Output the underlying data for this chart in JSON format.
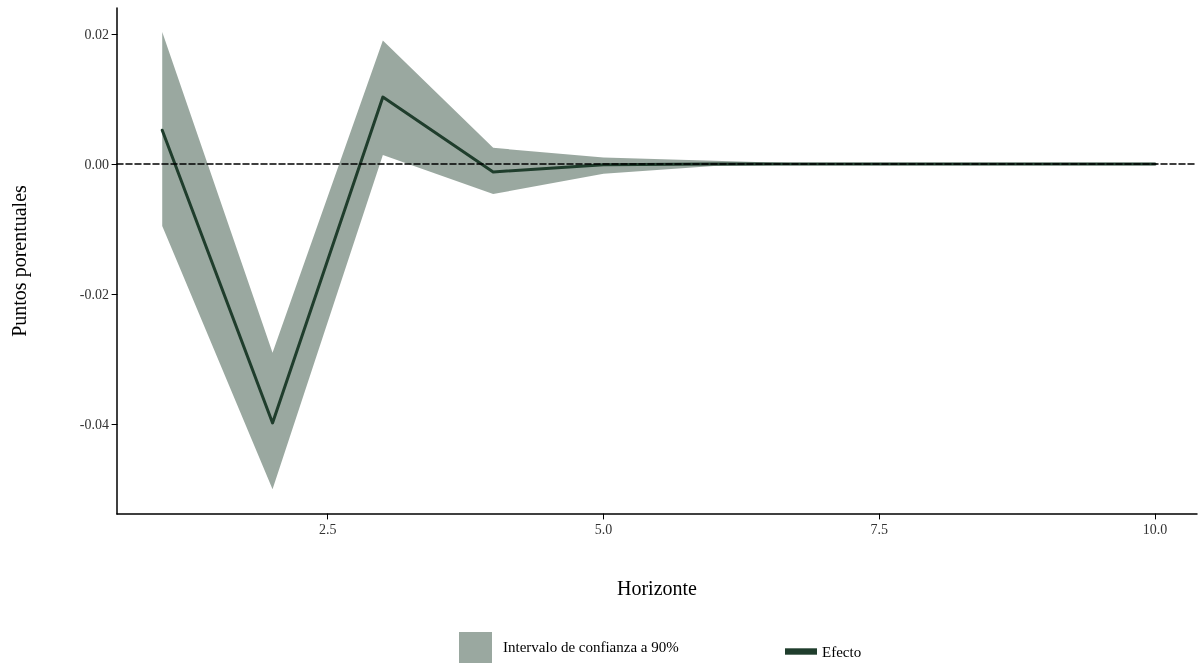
{
  "chart_data": {
    "type": "line",
    "xlabel": "Horizonte",
    "ylabel": "Puntos porentuales",
    "x": [
      1,
      2,
      3,
      4,
      5,
      6,
      7,
      8,
      9,
      10
    ],
    "series": [
      {
        "name": "Efecto",
        "color": "#1f3d2c",
        "values": [
          0.0052,
          -0.0398,
          0.0103,
          -0.0012,
          -0.0001,
          0,
          0,
          0,
          0,
          0
        ],
        "lower": [
          -0.0095,
          -0.05,
          0.0014,
          -0.0046,
          -0.0015,
          -0.0003,
          0,
          0,
          0,
          0
        ],
        "upper": [
          0.0203,
          -0.029,
          0.019,
          0.0025,
          0.001,
          0.0005,
          0,
          0,
          0,
          0
        ]
      }
    ],
    "annotations": [
      "Intervalo de confianza a 90%"
    ],
    "xlim": [
      0.59,
      10.38
    ],
    "xticks": [
      2.5,
      {
        "value": 5,
        "label": "5.0"
      },
      {
        "value": 7.5,
        "label": "7.5"
      },
      {
        "value": 10,
        "label": "10.0"
      }
    ],
    "ylim": [
      -0.0538,
      0.024
    ],
    "yticks": [
      {
        "value": -0.04,
        "label": "-0.04"
      },
      {
        "value": -0.02,
        "label": "-0.02"
      },
      {
        "value": 0,
        "label": "0.00"
      },
      {
        "value": 0.02,
        "label": "0.02"
      }
    ],
    "ref_lines": [
      {
        "axis": "y",
        "value": 0,
        "label": null,
        "color": "#000000",
        "line_style": "dashed"
      }
    ],
    "grid": false,
    "legend": "bottom",
    "marker": "none",
    "line_style": "solid"
  }
}
